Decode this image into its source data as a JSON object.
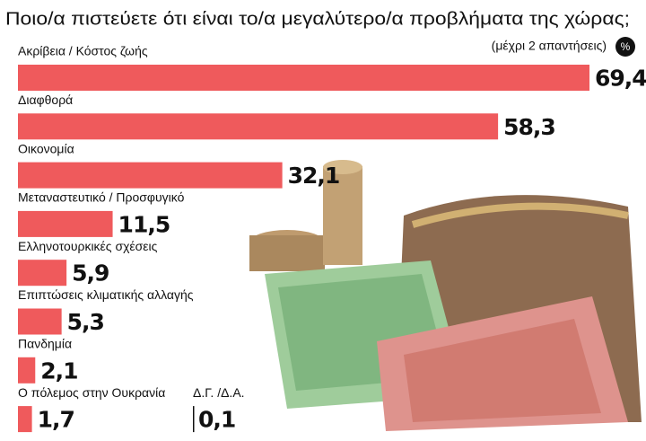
{
  "chart_data": {
    "type": "bar",
    "orientation": "horizontal",
    "title": "Ποιο/α πιστεύετε ότι είναι το/α μεγαλύτερο/α προβλήματα της χώρας;",
    "subtitle": "(μέχρι 2 απαντήσεις)",
    "unit": "%",
    "categories": [
      "Ακρίβεια / Κόστος ζωής",
      "Διαφθορά",
      "Οικονομία",
      "Μεταναστευτικό / Προσφυγικό",
      "Ελληνοτουρκικές σχέσεις",
      "Επιπτώσεις κλιματικής αλλαγής",
      "Πανδημία",
      "Ο πόλεμος στην Ουκρανία"
    ],
    "values": [
      69.4,
      58.3,
      32.1,
      11.5,
      5.9,
      5.3,
      2.1,
      1.7
    ],
    "value_labels": [
      "69,4",
      "58,3",
      "32,1",
      "11,5",
      "5,9",
      "5,3",
      "2,1",
      "1,7"
    ],
    "color": "#ef5a5c",
    "extra": {
      "label": "Δ.Γ. /Δ.Α.",
      "value": 0.1,
      "value_label": "0,1"
    }
  }
}
